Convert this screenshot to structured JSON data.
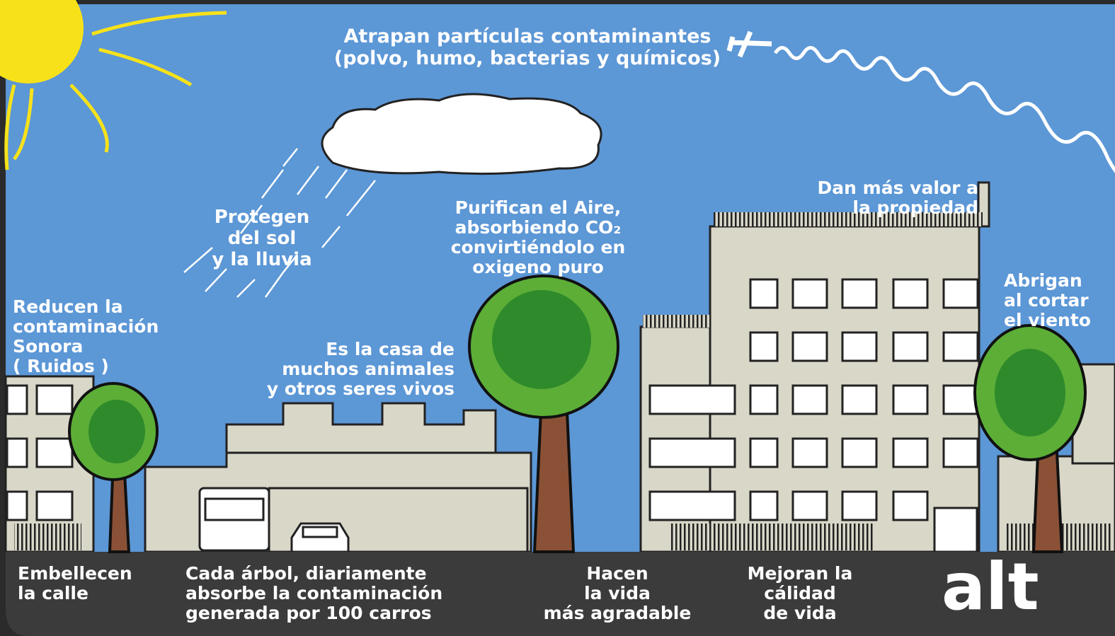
{
  "labels": [
    {
      "lines": [
        "Atrapan partículas contaminantes",
        "(polvo, humo, bacterias y químicos)"
      ]
    },
    {
      "lines": [
        "Protegen",
        "del sol",
        "y la lluvia"
      ]
    },
    {
      "lines": [
        "Purifican el Aire,",
        "absorbiendo CO₂",
        "convirtiéndolo en",
        "oxigeno puro"
      ]
    },
    {
      "lines": [
        "Dan más valor a",
        "la propiedad"
      ]
    },
    {
      "lines": [
        "Abrigan",
        "al cortar",
        "el viento"
      ]
    },
    {
      "lines": [
        "Reducen la",
        "contaminación",
        "Sonora",
        "( Ruidos )"
      ]
    },
    {
      "lines": [
        "Es la casa de",
        "muchos animales",
        "y otros seres vivos"
      ]
    },
    {
      "lines": [
        "Embellecen",
        "la calle"
      ]
    },
    {
      "lines": [
        "Cada árbol, diariamente",
        "absorbe la contaminación",
        "generada por 100 carros"
      ]
    },
    {
      "lines": [
        "Hacen",
        "la vida",
        "más agradable"
      ]
    },
    {
      "lines": [
        "Mejoran la",
        "cálidad",
        "de vida"
      ]
    },
    {
      "lines": [
        "alt"
      ]
    }
  ]
}
